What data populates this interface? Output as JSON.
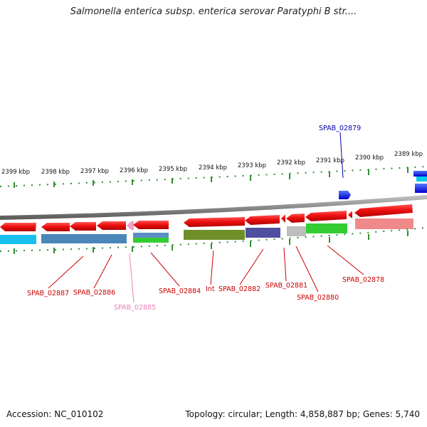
{
  "title": "Salmonella enterica subsp. enterica serovar Paratyphi B str....",
  "scale_labels": [
    "2399 kbp",
    "2398 kbp",
    "2397 kbp",
    "2396 kbp",
    "2395 kbp",
    "2394 kbp",
    "2393 kbp",
    "2392 kbp",
    "2391 kbp",
    "2390 kbp",
    "2389 kbp"
  ],
  "top_gene_label": "SPAB_02879",
  "gene_labels": [
    "SPAB_02887",
    "SPAB_02886",
    "SPAB_02885",
    "SPAB_02884",
    "Int",
    "SPAB_02882",
    "SPAB_02881",
    "SPAB_02880",
    "SPAB_02878"
  ],
  "footer": {
    "accession": "Accession: NC_010102",
    "summary": "Topology: circular; Length: 4,858,887 bp; Genes: 5,740"
  },
  "colors": {
    "gene_red": "#ee1111",
    "label_red": "#cc0000",
    "label_pink": "#e87fb5",
    "label_blue": "#0000aa",
    "tick_green": "#2f8f2f",
    "backbone": "#8a8a8a"
  }
}
